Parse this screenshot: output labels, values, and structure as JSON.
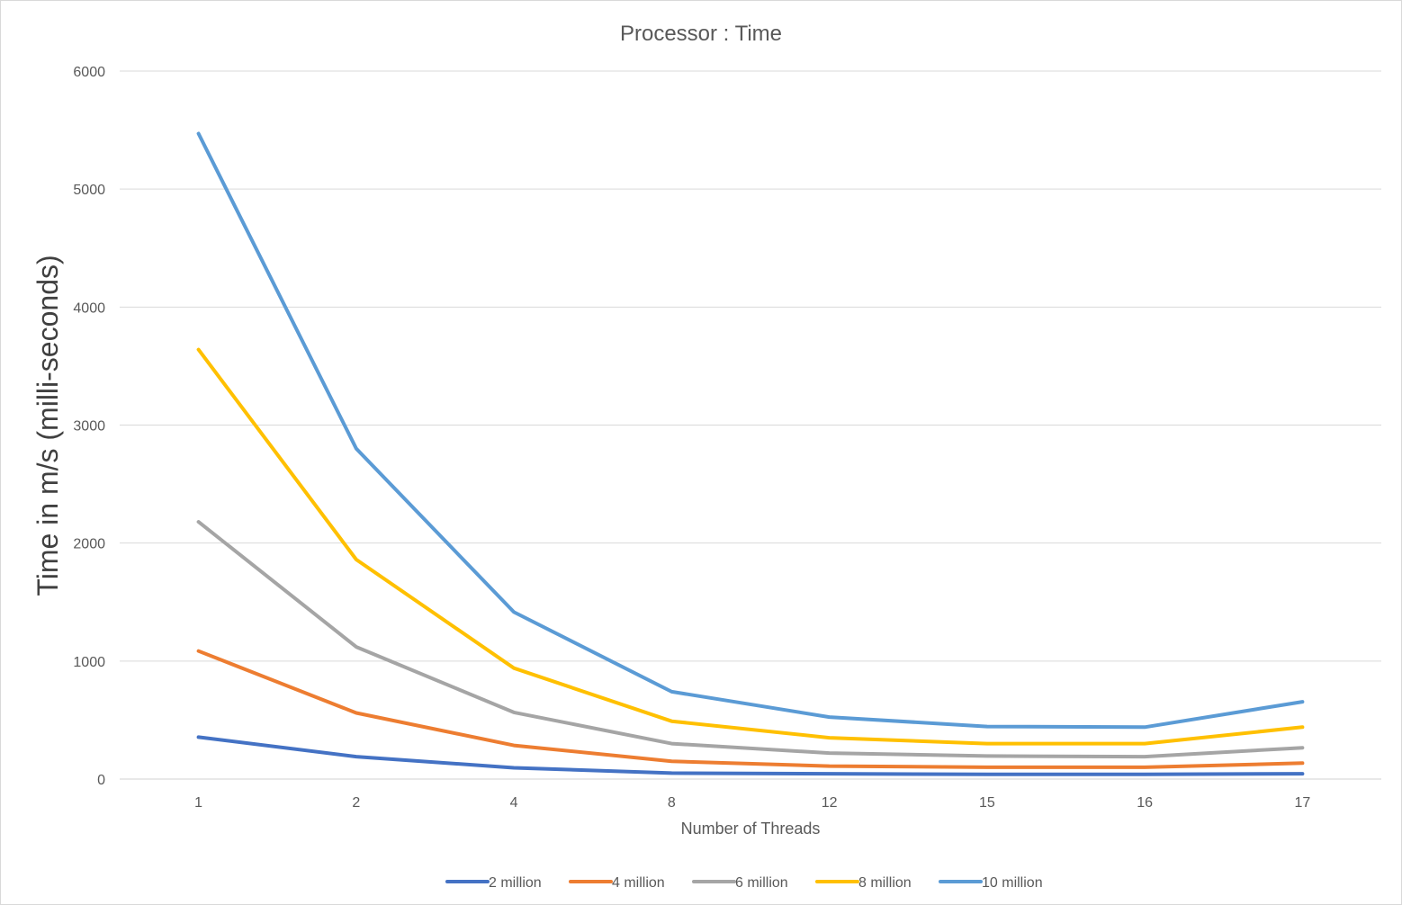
{
  "chart_data": {
    "type": "line",
    "title": "Processor  : Time",
    "xlabel": "Number of Threads",
    "ylabel": "Time in m/s  (milli-seconds)",
    "categories": [
      "1",
      "2",
      "4",
      "8",
      "12",
      "15",
      "16",
      "17"
    ],
    "ylim": [
      0,
      6000
    ],
    "yticks": [
      0,
      1000,
      2000,
      3000,
      4000,
      5000,
      6000
    ],
    "grid": true,
    "legend_position": "bottom",
    "series": [
      {
        "name": "2 million",
        "color": "#4472C4",
        "values": [
          355,
          190,
          95,
          50,
          45,
          40,
          40,
          45
        ]
      },
      {
        "name": "4 million",
        "color": "#ED7D31",
        "values": [
          1085,
          560,
          285,
          150,
          110,
          100,
          100,
          135
        ]
      },
      {
        "name": "6 million",
        "color": "#A5A5A5",
        "values": [
          2180,
          1120,
          565,
          300,
          220,
          195,
          190,
          265
        ]
      },
      {
        "name": "8 million",
        "color": "#FFC000",
        "values": [
          3640,
          1860,
          940,
          490,
          350,
          300,
          300,
          440
        ]
      },
      {
        "name": "10 million",
        "color": "#5B9BD5",
        "values": [
          5470,
          2800,
          1415,
          740,
          525,
          445,
          440,
          655
        ]
      }
    ]
  }
}
